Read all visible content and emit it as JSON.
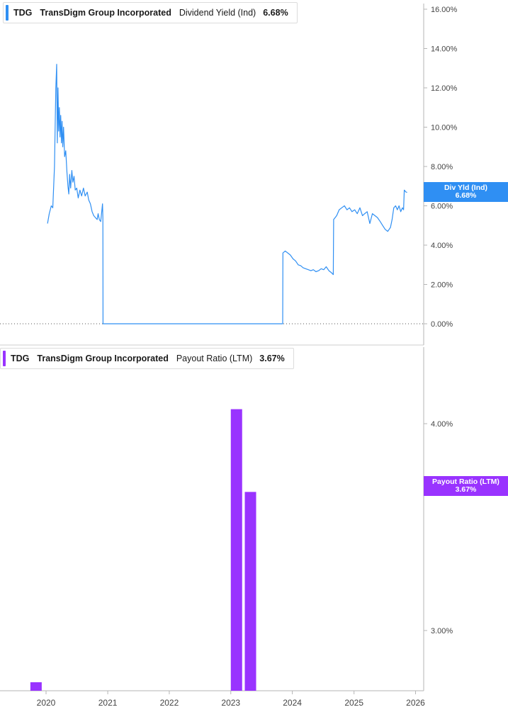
{
  "colors": {
    "div_yield": "#2f8ff3",
    "payout": "#9933ff",
    "axis": "#b5b5b5",
    "tick_text": "#444444"
  },
  "top_panel": {
    "legend": {
      "ticker": "TDG",
      "company": "TransDigm Group Incorporated",
      "metric": "Dividend Yield (Ind)",
      "value": "6.68%"
    },
    "flag": {
      "label": "Div Yld (Ind)",
      "value": "6.68%"
    }
  },
  "bottom_panel": {
    "legend": {
      "ticker": "TDG",
      "company": "TransDigm Group Incorporated",
      "metric": "Payout Ratio (LTM)",
      "value": "3.67%"
    },
    "flag": {
      "label": "Payout Ratio (LTM)",
      "value": "3.67%"
    }
  },
  "chart_data": [
    {
      "type": "line",
      "series": [
        {
          "name": "Dividend Yield (Ind)",
          "points": [
            [
              "2020-01-10",
              5.1
            ],
            [
              "2020-01-20",
              5.6
            ],
            [
              "2020-02-01",
              6.0
            ],
            [
              "2020-02-10",
              5.9
            ],
            [
              "2020-02-20",
              8.0
            ],
            [
              "2020-02-28",
              12.0
            ],
            [
              "2020-03-04",
              13.2
            ],
            [
              "2020-03-08",
              9.2
            ],
            [
              "2020-03-12",
              12.0
            ],
            [
              "2020-03-16",
              9.8
            ],
            [
              "2020-03-20",
              11.0
            ],
            [
              "2020-03-24",
              9.5
            ],
            [
              "2020-03-28",
              10.6
            ],
            [
              "2020-04-01",
              9.2
            ],
            [
              "2020-04-05",
              10.3
            ],
            [
              "2020-04-09",
              9.0
            ],
            [
              "2020-04-14",
              10.0
            ],
            [
              "2020-04-20",
              8.5
            ],
            [
              "2020-04-27",
              8.8
            ],
            [
              "2020-05-04",
              7.7
            ],
            [
              "2020-05-10",
              7.0
            ],
            [
              "2020-05-15",
              6.6
            ],
            [
              "2020-05-20",
              7.6
            ],
            [
              "2020-05-26",
              6.9
            ],
            [
              "2020-06-02",
              7.8
            ],
            [
              "2020-06-08",
              7.2
            ],
            [
              "2020-06-15",
              7.5
            ],
            [
              "2020-06-22",
              6.8
            ],
            [
              "2020-07-01",
              6.9
            ],
            [
              "2020-07-10",
              6.4
            ],
            [
              "2020-07-20",
              6.8
            ],
            [
              "2020-07-30",
              6.5
            ],
            [
              "2020-08-10",
              6.9
            ],
            [
              "2020-08-20",
              6.5
            ],
            [
              "2020-09-01",
              6.7
            ],
            [
              "2020-09-10",
              6.3
            ],
            [
              "2020-09-20",
              6.1
            ],
            [
              "2020-09-30",
              5.7
            ],
            [
              "2020-10-10",
              5.5
            ],
            [
              "2020-10-20",
              5.4
            ],
            [
              "2020-10-30",
              5.3
            ],
            [
              "2020-11-05",
              5.6
            ],
            [
              "2020-11-12",
              5.3
            ],
            [
              "2020-11-20",
              5.2
            ],
            [
              "2020-11-25",
              5.6
            ],
            [
              "2020-12-01",
              6.1
            ],
            [
              "2020-12-03",
              5.4
            ],
            [
              "2020-12-04",
              0.0
            ],
            [
              "2023-11-05",
              0.0
            ],
            [
              "2023-11-06",
              3.6
            ],
            [
              "2023-11-20",
              3.7
            ],
            [
              "2023-12-05",
              3.6
            ],
            [
              "2023-12-20",
              3.5
            ],
            [
              "2024-01-05",
              3.3
            ],
            [
              "2024-01-20",
              3.2
            ],
            [
              "2024-02-05",
              3.0
            ],
            [
              "2024-02-20",
              2.95
            ],
            [
              "2024-03-05",
              2.85
            ],
            [
              "2024-03-20",
              2.8
            ],
            [
              "2024-04-05",
              2.75
            ],
            [
              "2024-04-20",
              2.7
            ],
            [
              "2024-05-05",
              2.75
            ],
            [
              "2024-05-20",
              2.65
            ],
            [
              "2024-06-05",
              2.7
            ],
            [
              "2024-06-20",
              2.8
            ],
            [
              "2024-07-05",
              2.75
            ],
            [
              "2024-07-20",
              2.9
            ],
            [
              "2024-08-05",
              2.7
            ],
            [
              "2024-08-20",
              2.6
            ],
            [
              "2024-08-31",
              2.5
            ],
            [
              "2024-09-02",
              5.3
            ],
            [
              "2024-09-20",
              5.5
            ],
            [
              "2024-10-05",
              5.8
            ],
            [
              "2024-10-20",
              5.9
            ],
            [
              "2024-11-05",
              6.0
            ],
            [
              "2024-11-20",
              5.8
            ],
            [
              "2024-12-05",
              5.9
            ],
            [
              "2024-12-20",
              5.7
            ],
            [
              "2025-01-05",
              5.8
            ],
            [
              "2025-01-20",
              5.6
            ],
            [
              "2025-02-05",
              5.9
            ],
            [
              "2025-02-20",
              5.5
            ],
            [
              "2025-03-05",
              5.6
            ],
            [
              "2025-03-20",
              5.7
            ],
            [
              "2025-04-05",
              5.1
            ],
            [
              "2025-04-20",
              5.6
            ],
            [
              "2025-05-05",
              5.5
            ],
            [
              "2025-05-20",
              5.4
            ],
            [
              "2025-06-05",
              5.2
            ],
            [
              "2025-06-20",
              5.0
            ],
            [
              "2025-07-05",
              4.8
            ],
            [
              "2025-07-20",
              4.7
            ],
            [
              "2025-08-05",
              4.9
            ],
            [
              "2025-08-15",
              5.3
            ],
            [
              "2025-08-25",
              5.9
            ],
            [
              "2025-09-05",
              6.0
            ],
            [
              "2025-09-15",
              5.8
            ],
            [
              "2025-09-25",
              6.0
            ],
            [
              "2025-10-05",
              5.7
            ],
            [
              "2025-10-15",
              5.9
            ],
            [
              "2025-10-22",
              5.8
            ],
            [
              "2025-10-26",
              6.8
            ],
            [
              "2025-11-05",
              6.7
            ],
            [
              "2025-11-12",
              6.68
            ]
          ]
        }
      ],
      "y_ticks": [
        "0.00%",
        "2.00%",
        "4.00%",
        "6.00%",
        "8.00%",
        "10.00%",
        "12.00%",
        "14.00%",
        "16.00%"
      ],
      "ylim": [
        0,
        16
      ],
      "y_unit": "%",
      "zero_line": "dotted",
      "current_value": 6.68
    },
    {
      "type": "bar",
      "series": [
        {
          "name": "Payout Ratio (LTM)",
          "bars": [
            {
              "x": "2019-09-30",
              "value": 2.75
            },
            {
              "x": "2023-01-01",
              "value": 4.07
            },
            {
              "x": "2023-03-25",
              "value": 3.67
            }
          ]
        }
      ],
      "y_ticks": [
        "3.00%",
        "4.00%"
      ],
      "ylim": [
        2.7,
        4.15
      ],
      "y_unit": "%",
      "current_value": 3.67
    }
  ],
  "x_axis": {
    "tick_labels": [
      "2020",
      "2021",
      "2022",
      "2023",
      "2024",
      "2025",
      "2026"
    ],
    "range": [
      "2019-09-30",
      "2026-02-20"
    ]
  }
}
